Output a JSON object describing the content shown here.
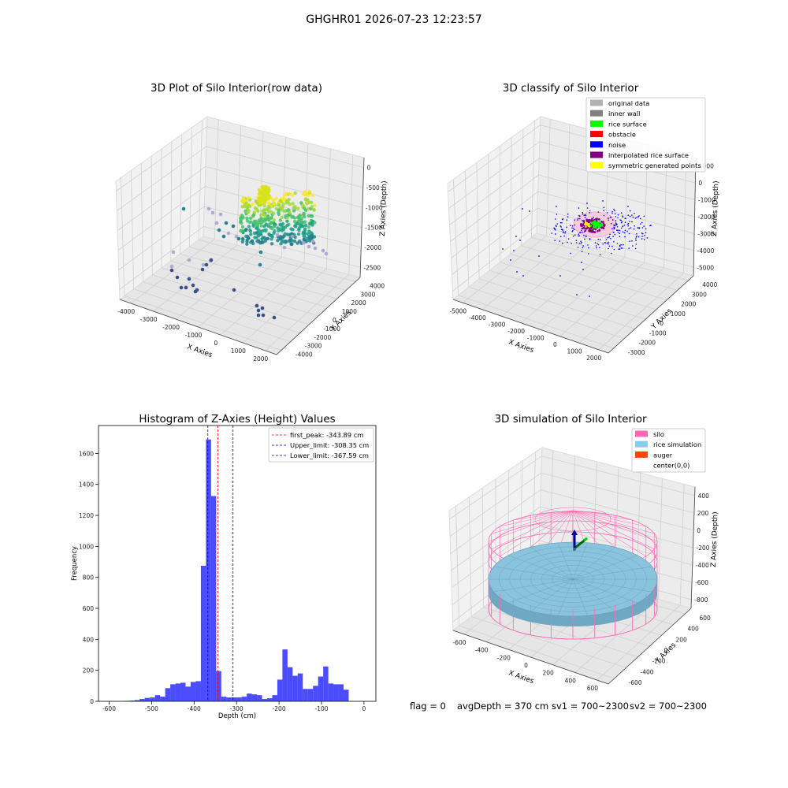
{
  "figure": {
    "suptitle": "GHGHR01 2026-07-23 12:23:57",
    "footer": {
      "flag": "flag = 0",
      "avg_depth": "avgDepth = 370 cm",
      "sv1": "sv1 = 700~2300",
      "sv2": "sv2 = 700~2300"
    }
  },
  "chart_data": [
    {
      "type": "scatter",
      "projection": "3d",
      "title": "3D Plot of Silo Interior(row data)",
      "xlabel": "X Axies",
      "ylabel": "Y Axies",
      "zlabel": "Z Axies (Depth)",
      "x_ticks": [
        "-4000",
        "-3000",
        "-2000",
        "-1000",
        "0",
        "1000",
        "2000"
      ],
      "y_ticks": [
        "-4000",
        "-3000",
        "-2000",
        "-1000",
        "0",
        "1000",
        "2000",
        "3000",
        "4000"
      ],
      "z_ticks": [
        "0",
        "-500",
        "-1000",
        "-1500",
        "-2000",
        "-2500"
      ],
      "xlim": [
        -4300,
        2000
      ],
      "ylim": [
        -4000,
        4000
      ],
      "zlim": [
        -2800,
        0
      ],
      "colormap": "viridis",
      "point_groups": [
        {
          "description": "dense rice-surface cluster",
          "color_range": [
            "#1fa187",
            "#fde725"
          ],
          "approx_points": 700
        },
        {
          "description": "scattered wall points",
          "color_range": [
            "#3b528b",
            "#a2a0d0"
          ],
          "approx_points": 120
        }
      ],
      "grid": true
    },
    {
      "type": "scatter",
      "projection": "3d",
      "title": "3D classify of Silo Interior",
      "xlabel": "X Axies",
      "ylabel": "Y Axies",
      "zlabel": "Z Axies (Depth)",
      "x_ticks": [
        "-5000",
        "-4000",
        "-3000",
        "-2000",
        "-1000",
        "0",
        "1000",
        "2000"
      ],
      "y_ticks": [
        "-3000",
        "-2000",
        "-1000",
        "0",
        "1000",
        "2000",
        "3000",
        "4000"
      ],
      "z_ticks": [
        "1000",
        "0",
        "-1000",
        "-2000",
        "-3000",
        "-4000",
        "-5000"
      ],
      "legend": [
        {
          "label": "original data",
          "color": "#b2b2b2"
        },
        {
          "label": "inner wall",
          "color": "#808080"
        },
        {
          "label": "rice surface",
          "color": "#00ff00"
        },
        {
          "label": "obstacle",
          "color": "#ff0000"
        },
        {
          "label": "noise",
          "color": "#0000ff"
        },
        {
          "label": "interpolated rice surface",
          "color": "#800080"
        },
        {
          "label": "symmetric generated points",
          "color": "#ffff00"
        }
      ],
      "legend_position": "upper right",
      "grid": true
    },
    {
      "type": "bar",
      "title": "Histogram of Z-Axies (Height) Values",
      "xlabel": "Depth (cm)",
      "ylabel": "Frequency",
      "xlim": [
        -625,
        28
      ],
      "ylim": [
        0,
        1780
      ],
      "x_ticks": [
        -600,
        -500,
        -400,
        -300,
        -200,
        -100,
        0
      ],
      "y_ticks": [
        0,
        200,
        400,
        600,
        800,
        1000,
        1200,
        1400,
        1600
      ],
      "bin_width": 12,
      "bin_start": -576,
      "counts": [
        2,
        3,
        5,
        8,
        15,
        22,
        25,
        40,
        30,
        85,
        110,
        115,
        120,
        95,
        125,
        130,
        875,
        1690,
        1325,
        195,
        30,
        25,
        25,
        25,
        30,
        50,
        45,
        40,
        15,
        20,
        40,
        140,
        335,
        220,
        165,
        180,
        80,
        80,
        100,
        160,
        225,
        115,
        110,
        110,
        75
      ],
      "bar_color": "#0000ff",
      "lines": [
        {
          "label": "first_peak: -343.89 cm",
          "value": -343.89,
          "color": "#ff0000"
        },
        {
          "label": "Upper_limit: -308.35 cm",
          "value": -308.35,
          "color": "#0000cd"
        },
        {
          "label": "Lower_limit: -367.59 cm",
          "value": -367.59,
          "color": "#0000cd"
        }
      ],
      "legend_position": "upper right"
    },
    {
      "type": "surface",
      "projection": "3d",
      "title": "3D simulation of Silo Interior",
      "xlabel": "X Axies",
      "ylabel": "Y Axies",
      "zlabel": "Z Axies (Depth)",
      "x_ticks": [
        "-600",
        "-400",
        "-200",
        "0",
        "200",
        "400",
        "600"
      ],
      "y_ticks": [
        "-600",
        "-400",
        "-200",
        "0",
        "200",
        "400",
        "600"
      ],
      "z_ticks": [
        "400",
        "200",
        "0",
        "-200",
        "-400",
        "-600",
        "-800"
      ],
      "legend": [
        {
          "label": "silo",
          "color": "#ff69b4"
        },
        {
          "label": "rice simulation",
          "color": "#87ceeb"
        },
        {
          "label": "auger",
          "color": "#ff4500"
        },
        {
          "label": "center(0,0)",
          "color": ""
        }
      ],
      "legend_position": "upper right",
      "grid": true
    }
  ]
}
